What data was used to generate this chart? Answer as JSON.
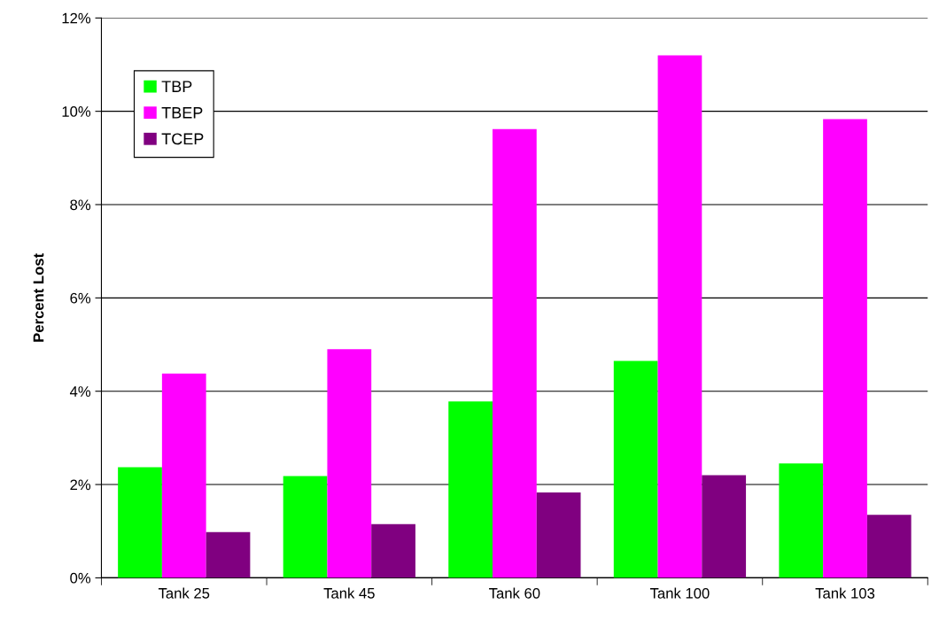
{
  "chart_data": {
    "type": "bar",
    "ylabel": "Percent Lost",
    "categories": [
      "Tank 25",
      "Tank 45",
      "Tank 60",
      "Tank 100",
      "Tank 103"
    ],
    "series": [
      {
        "name": "TBP",
        "color": "#00ff00",
        "values": [
          2.37,
          2.18,
          3.78,
          4.65,
          2.45
        ]
      },
      {
        "name": "TBEP",
        "color": "#ff00ff",
        "values": [
          4.38,
          4.9,
          9.62,
          11.2,
          9.83
        ]
      },
      {
        "name": "TCEP",
        "color": "#800080",
        "values": [
          0.98,
          1.15,
          1.83,
          2.2,
          1.35
        ]
      }
    ],
    "ylim": [
      0,
      12
    ],
    "yticks": [
      {
        "value": 0,
        "label": "0%"
      },
      {
        "value": 2,
        "label": "2%"
      },
      {
        "value": 4,
        "label": "4%"
      },
      {
        "value": 6,
        "label": "6%"
      },
      {
        "value": 8,
        "label": "8%"
      },
      {
        "value": 10,
        "label": "10%"
      },
      {
        "value": 12,
        "label": "12%"
      }
    ],
    "grid": "y",
    "legend": "top left"
  }
}
